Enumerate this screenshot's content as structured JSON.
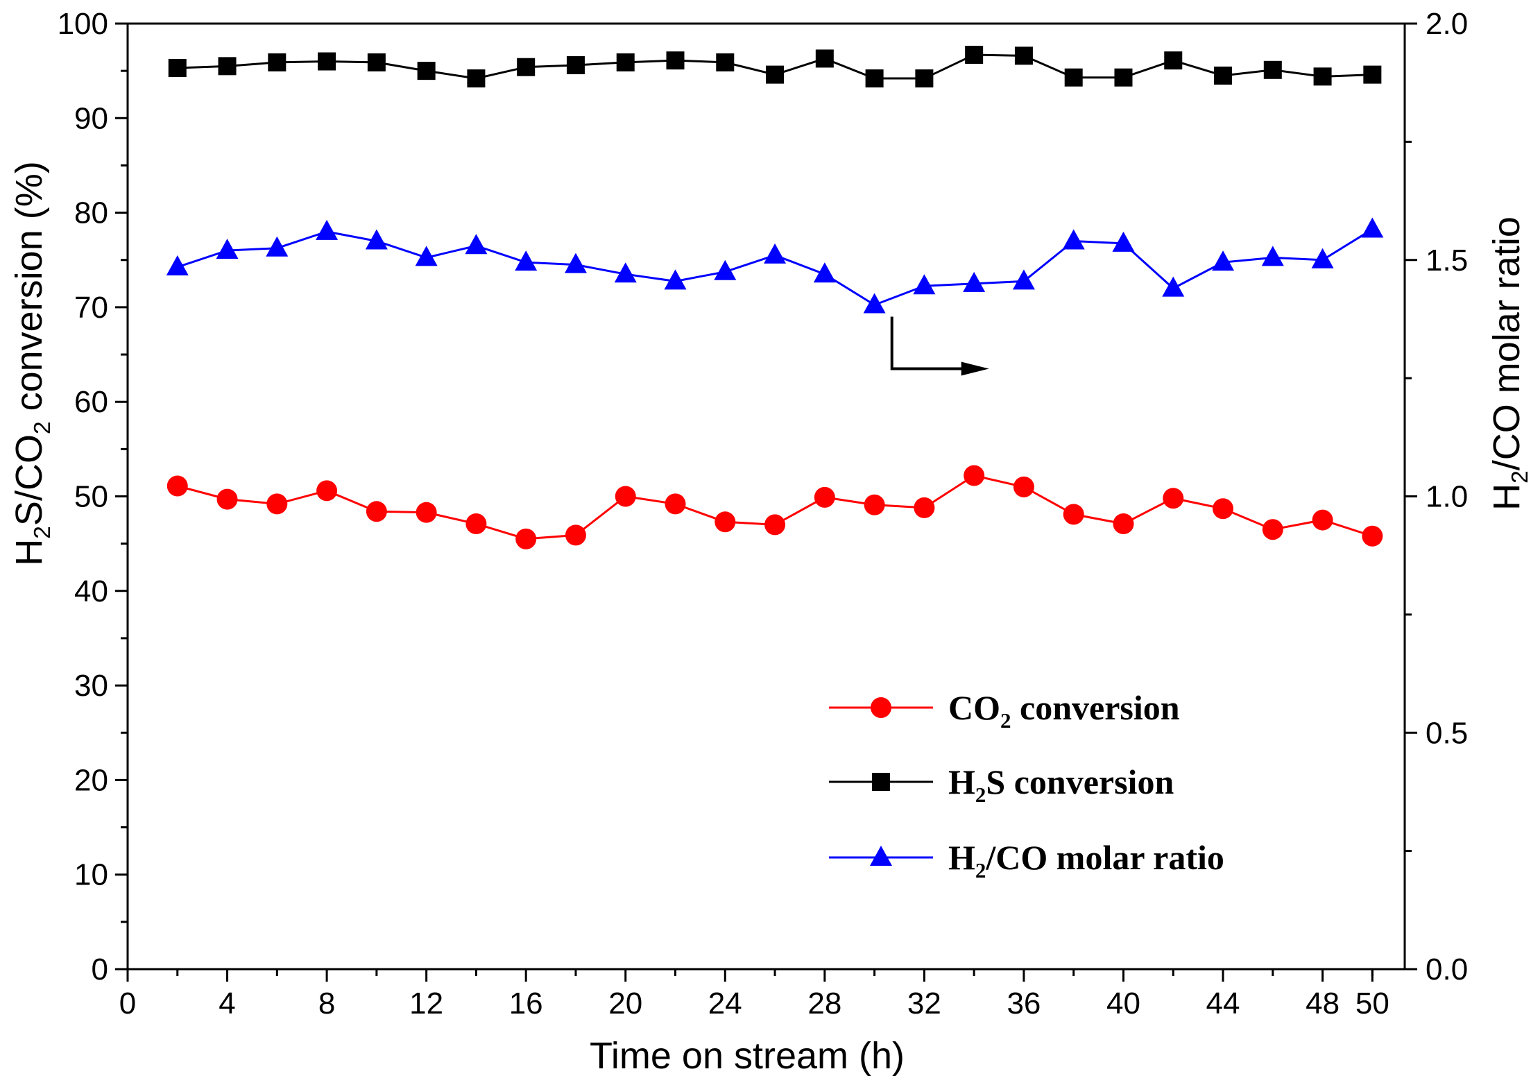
{
  "chart_data": {
    "type": "line",
    "title": "",
    "xlabel": "Time on stream (h)",
    "ylabel_parts": [
      "H",
      "2",
      "S/CO",
      "2",
      " conversion (%)"
    ],
    "y2label_parts": [
      "H",
      "2",
      "/CO molar ratio"
    ],
    "xlim": [
      0,
      51.3
    ],
    "ylim": [
      0,
      100
    ],
    "y2lim": [
      0,
      2.0
    ],
    "x_ticks": [
      0,
      4,
      8,
      12,
      16,
      20,
      24,
      28,
      32,
      36,
      40,
      44,
      48,
      50
    ],
    "y_ticks": [
      0,
      10,
      20,
      30,
      40,
      50,
      60,
      70,
      80,
      90,
      100
    ],
    "y2_ticks": [
      "0.0",
      "0.5",
      "1.0",
      "1.5",
      "2.0"
    ],
    "x": [
      2,
      4,
      6,
      8,
      10,
      12,
      14,
      16,
      18,
      20,
      22,
      24,
      26,
      28,
      30,
      32,
      34,
      36,
      38,
      40,
      42,
      44,
      46,
      48,
      50
    ],
    "series": [
      {
        "name": "CO2 conversion",
        "legend_parts": [
          "CO",
          "2",
          " conversion"
        ],
        "axis": "left",
        "color": "#ff0000",
        "marker": "circle",
        "values": [
          51.1,
          49.7,
          49.2,
          50.6,
          48.4,
          48.3,
          47.1,
          45.5,
          45.9,
          50.0,
          49.2,
          47.3,
          47.0,
          49.9,
          49.1,
          48.8,
          52.2,
          51.0,
          48.1,
          47.1,
          49.8,
          48.7,
          46.5,
          47.5,
          45.8
        ]
      },
      {
        "name": "H2S conversion",
        "legend_parts": [
          "H",
          "2",
          "S conversion"
        ],
        "axis": "left",
        "color": "#000000",
        "marker": "square",
        "values": [
          95.3,
          95.5,
          95.9,
          96.0,
          95.9,
          95.0,
          94.2,
          95.4,
          95.6,
          95.9,
          96.1,
          95.9,
          94.6,
          96.3,
          94.2,
          94.2,
          96.7,
          96.6,
          94.3,
          94.3,
          96.1,
          94.5,
          95.1,
          94.4,
          94.6
        ]
      },
      {
        "name": "H2/CO molar ratio",
        "legend_parts": [
          "H",
          "2",
          "/CO molar ratio"
        ],
        "axis": "right",
        "color": "#0000ff",
        "marker": "triangle",
        "values": [
          1.485,
          1.52,
          1.525,
          1.56,
          1.54,
          1.505,
          1.53,
          1.495,
          1.49,
          1.47,
          1.455,
          1.475,
          1.51,
          1.47,
          1.405,
          1.445,
          1.45,
          1.455,
          1.54,
          1.535,
          1.44,
          1.495,
          1.505,
          1.5,
          1.565
        ]
      }
    ],
    "annotation": {
      "type": "arrow",
      "meaning": "blue series refers to right axis",
      "direction": "right"
    },
    "legend_position": "lower-right",
    "grid": false
  }
}
